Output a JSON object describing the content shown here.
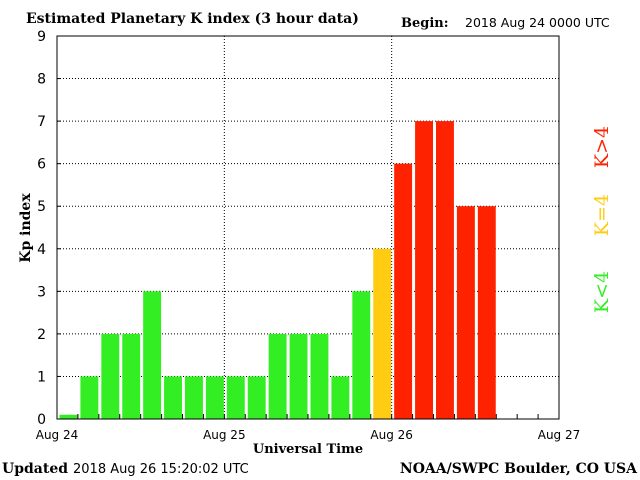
{
  "header": {
    "title": "Estimated Planetary K index (3 hour data)",
    "begin_label": "Begin:",
    "begin_value": "2018 Aug 24 0000 UTC"
  },
  "footer": {
    "updated_label": "Updated",
    "updated_value": "2018 Aug 26 15:20:02 UTC",
    "source": "NOAA/SWPC Boulder, CO USA"
  },
  "legend": {
    "low": "K<4",
    "equal": "K=4",
    "high": "K>4"
  },
  "colors": {
    "low": "#33ee22",
    "equal": "#ffcc11",
    "high": "#ff2200",
    "grid": "#000000",
    "axis": "#000000"
  },
  "chart_data": {
    "type": "bar",
    "title": "Estimated Planetary K index (3 hour data)",
    "xlabel": "Universal Time",
    "ylabel": "Kp index",
    "ylim": [
      0,
      9
    ],
    "yticks": [
      0,
      1,
      2,
      3,
      4,
      5,
      6,
      7,
      8,
      9
    ],
    "x_tick_labels": [
      "Aug 24",
      "Aug 25",
      "Aug 26",
      "Aug 27"
    ],
    "grid": "dotted, at day boundaries and each integer Kp",
    "bins_per_day": 8,
    "days": 3,
    "values": [
      0.1,
      1,
      2,
      2,
      3,
      1,
      1,
      1,
      1,
      1,
      2,
      2,
      2,
      1,
      3,
      4,
      6,
      7,
      7,
      5,
      5
    ]
  }
}
